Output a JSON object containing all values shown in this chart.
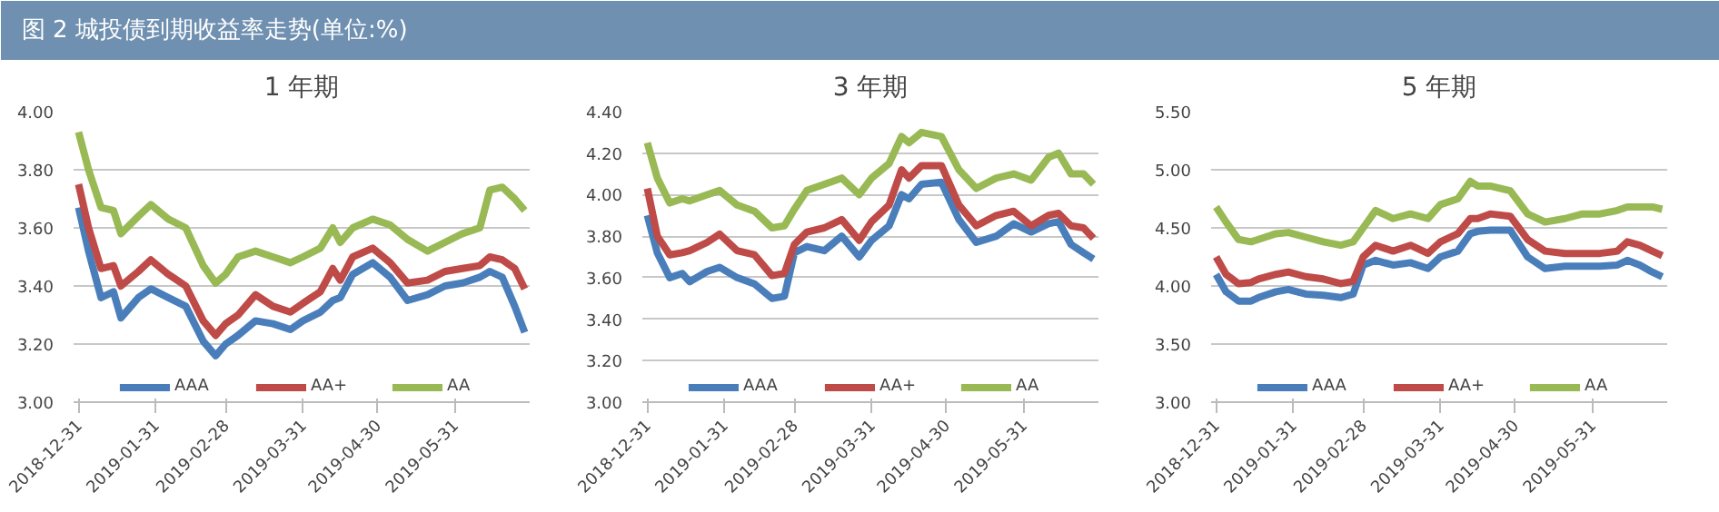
{
  "chart_data": [
    {
      "type": "line",
      "title": "1 年期",
      "annotations": [
        "图 2 城投债到期收益率走势(单位:%)"
      ],
      "grid": "y",
      "legend": "bottom",
      "x": [
        "2018-12-31",
        "2019-01-04",
        "2019-01-09",
        "2019-01-14",
        "2019-01-17",
        "2019-01-24",
        "2019-01-29",
        "2019-02-05",
        "2019-02-12",
        "2019-02-19",
        "2019-02-24",
        "2019-02-28",
        "2019-03-05",
        "2019-03-12",
        "2019-03-19",
        "2019-03-26",
        "2019-03-31",
        "2019-04-07",
        "2019-04-12",
        "2019-04-15",
        "2019-04-20",
        "2019-04-28",
        "2019-05-05",
        "2019-05-12",
        "2019-05-20",
        "2019-05-27",
        "2019-06-03",
        "2019-06-10",
        "2019-06-14",
        "2019-06-19",
        "2019-06-24",
        "2019-06-28"
      ],
      "xlim": [
        "2018-12-29",
        "2019-06-30"
      ],
      "xticks": [
        "2018-12-31",
        "2019-01-31",
        "2019-02-28",
        "2019-03-31",
        "2019-04-30",
        "2019-05-31"
      ],
      "ylim": [
        3.0,
        4.0
      ],
      "yticks": [
        {
          "value": 3.0,
          "label": "3.00"
        },
        {
          "value": 3.2,
          "label": "3.20"
        },
        {
          "value": 3.4,
          "label": "3.40"
        },
        {
          "value": 3.6,
          "label": "3.60"
        },
        {
          "value": 3.8,
          "label": "3.80"
        },
        {
          "value": 4.0,
          "label": "4.00"
        }
      ],
      "series": [
        {
          "name": "AAA",
          "color": "#4a7ebb",
          "values": [
            3.67,
            3.52,
            3.36,
            3.38,
            3.29,
            3.36,
            3.39,
            3.36,
            3.33,
            3.21,
            3.16,
            3.2,
            3.23,
            3.28,
            3.27,
            3.25,
            3.28,
            3.31,
            3.35,
            3.36,
            3.44,
            3.48,
            3.43,
            3.35,
            3.37,
            3.4,
            3.41,
            3.43,
            3.45,
            3.43,
            3.33,
            3.24
          ]
        },
        {
          "name": "AA+",
          "color": "#be4b48",
          "values": [
            3.75,
            3.6,
            3.46,
            3.47,
            3.4,
            3.45,
            3.49,
            3.44,
            3.4,
            3.28,
            3.23,
            3.27,
            3.3,
            3.37,
            3.33,
            3.31,
            3.34,
            3.38,
            3.46,
            3.42,
            3.5,
            3.53,
            3.48,
            3.41,
            3.42,
            3.45,
            3.46,
            3.47,
            3.5,
            3.49,
            3.46,
            3.39
          ]
        },
        {
          "name": "AA",
          "color": "#98b954",
          "values": [
            3.93,
            3.8,
            3.67,
            3.66,
            3.58,
            3.64,
            3.68,
            3.63,
            3.6,
            3.47,
            3.41,
            3.44,
            3.5,
            3.52,
            3.5,
            3.48,
            3.5,
            3.53,
            3.6,
            3.55,
            3.6,
            3.63,
            3.61,
            3.56,
            3.52,
            3.55,
            3.58,
            3.6,
            3.73,
            3.74,
            3.7,
            3.66
          ]
        }
      ]
    },
    {
      "type": "line",
      "title": "3 年期",
      "grid": "y",
      "legend": "bottom",
      "x": [
        "2018-12-31",
        "2019-01-04",
        "2019-01-09",
        "2019-01-14",
        "2019-01-17",
        "2019-01-24",
        "2019-01-29",
        "2019-02-05",
        "2019-02-12",
        "2019-02-19",
        "2019-02-24",
        "2019-02-28",
        "2019-03-05",
        "2019-03-12",
        "2019-03-19",
        "2019-03-26",
        "2019-03-31",
        "2019-04-07",
        "2019-04-12",
        "2019-04-15",
        "2019-04-20",
        "2019-04-28",
        "2019-05-05",
        "2019-05-12",
        "2019-05-20",
        "2019-05-27",
        "2019-06-03",
        "2019-06-10",
        "2019-06-14",
        "2019-06-19",
        "2019-06-24",
        "2019-06-28"
      ],
      "xlim": [
        "2018-12-29",
        "2019-06-30"
      ],
      "xticks": [
        "2018-12-31",
        "2019-01-31",
        "2019-02-28",
        "2019-03-31",
        "2019-04-30",
        "2019-05-31"
      ],
      "ylim": [
        3.0,
        4.4
      ],
      "yticks": [
        {
          "value": 3.0,
          "label": "3.00"
        },
        {
          "value": 3.2,
          "label": "3.20"
        },
        {
          "value": 3.4,
          "label": "3.40"
        },
        {
          "value": 3.6,
          "label": "3.60"
        },
        {
          "value": 3.8,
          "label": "3.80"
        },
        {
          "value": 4.0,
          "label": "4.00"
        },
        {
          "value": 4.2,
          "label": "4.20"
        },
        {
          "value": 4.4,
          "label": "4.40"
        }
      ],
      "series": [
        {
          "name": "AAA",
          "color": "#4a7ebb",
          "values": [
            3.9,
            3.72,
            3.6,
            3.62,
            3.58,
            3.63,
            3.65,
            3.6,
            3.57,
            3.5,
            3.51,
            3.72,
            3.75,
            3.73,
            3.8,
            3.7,
            3.78,
            3.85,
            4.0,
            3.98,
            4.05,
            4.06,
            3.88,
            3.77,
            3.8,
            3.86,
            3.82,
            3.86,
            3.87,
            3.76,
            3.72,
            3.69
          ]
        },
        {
          "name": "AA+",
          "color": "#be4b48",
          "values": [
            4.03,
            3.8,
            3.71,
            3.72,
            3.73,
            3.77,
            3.81,
            3.73,
            3.71,
            3.61,
            3.62,
            3.76,
            3.82,
            3.84,
            3.88,
            3.78,
            3.87,
            3.95,
            4.12,
            4.08,
            4.14,
            4.14,
            3.95,
            3.85,
            3.9,
            3.92,
            3.85,
            3.9,
            3.91,
            3.85,
            3.84,
            3.79
          ]
        },
        {
          "name": "AA",
          "color": "#98b954",
          "values": [
            4.25,
            4.08,
            3.96,
            3.98,
            3.97,
            4.0,
            4.02,
            3.95,
            3.92,
            3.84,
            3.85,
            3.93,
            4.02,
            4.05,
            4.08,
            4.0,
            4.08,
            4.15,
            4.28,
            4.25,
            4.3,
            4.28,
            4.12,
            4.03,
            4.08,
            4.1,
            4.07,
            4.18,
            4.2,
            4.1,
            4.1,
            4.05
          ]
        }
      ]
    },
    {
      "type": "line",
      "title": "5 年期",
      "grid": "y",
      "legend": "bottom",
      "x": [
        "2018-12-31",
        "2019-01-04",
        "2019-01-09",
        "2019-01-14",
        "2019-01-17",
        "2019-01-24",
        "2019-01-29",
        "2019-02-05",
        "2019-02-12",
        "2019-02-19",
        "2019-02-24",
        "2019-02-28",
        "2019-03-05",
        "2019-03-12",
        "2019-03-19",
        "2019-03-26",
        "2019-03-31",
        "2019-04-07",
        "2019-04-12",
        "2019-04-15",
        "2019-04-20",
        "2019-04-28",
        "2019-05-05",
        "2019-05-12",
        "2019-05-20",
        "2019-05-27",
        "2019-06-03",
        "2019-06-10",
        "2019-06-14",
        "2019-06-19",
        "2019-06-24",
        "2019-06-28"
      ],
      "xlim": [
        "2018-12-29",
        "2019-06-30"
      ],
      "xticks": [
        "2018-12-31",
        "2019-01-31",
        "2019-02-28",
        "2019-03-31",
        "2019-04-30",
        "2019-05-31"
      ],
      "ylim": [
        3.0,
        5.5
      ],
      "yticks": [
        {
          "value": 3.0,
          "label": "3.00"
        },
        {
          "value": 3.5,
          "label": "3.50"
        },
        {
          "value": 4.0,
          "label": "4.00"
        },
        {
          "value": 4.5,
          "label": "4.50"
        },
        {
          "value": 5.0,
          "label": "5.00"
        },
        {
          "value": 5.5,
          "label": "5.50"
        }
      ],
      "series": [
        {
          "name": "AAA",
          "color": "#4a7ebb",
          "values": [
            4.1,
            3.95,
            3.87,
            3.87,
            3.9,
            3.95,
            3.97,
            3.93,
            3.92,
            3.9,
            3.93,
            4.18,
            4.22,
            4.18,
            4.2,
            4.15,
            4.25,
            4.3,
            4.45,
            4.47,
            4.48,
            4.48,
            4.25,
            4.15,
            4.17,
            4.17,
            4.17,
            4.18,
            4.22,
            4.18,
            4.12,
            4.08
          ]
        },
        {
          "name": "AA+",
          "color": "#be4b48",
          "values": [
            4.25,
            4.1,
            4.02,
            4.03,
            4.06,
            4.1,
            4.12,
            4.08,
            4.06,
            4.02,
            4.04,
            4.25,
            4.35,
            4.3,
            4.35,
            4.28,
            4.38,
            4.45,
            4.58,
            4.58,
            4.62,
            4.6,
            4.4,
            4.3,
            4.28,
            4.28,
            4.28,
            4.3,
            4.38,
            4.35,
            4.3,
            4.26
          ]
        },
        {
          "name": "AA",
          "color": "#98b954",
          "values": [
            4.68,
            4.55,
            4.4,
            4.38,
            4.4,
            4.45,
            4.46,
            4.42,
            4.38,
            4.35,
            4.38,
            4.5,
            4.65,
            4.58,
            4.62,
            4.58,
            4.7,
            4.75,
            4.9,
            4.86,
            4.86,
            4.82,
            4.62,
            4.55,
            4.58,
            4.62,
            4.62,
            4.65,
            4.68,
            4.68,
            4.68,
            4.66
          ]
        }
      ]
    }
  ]
}
